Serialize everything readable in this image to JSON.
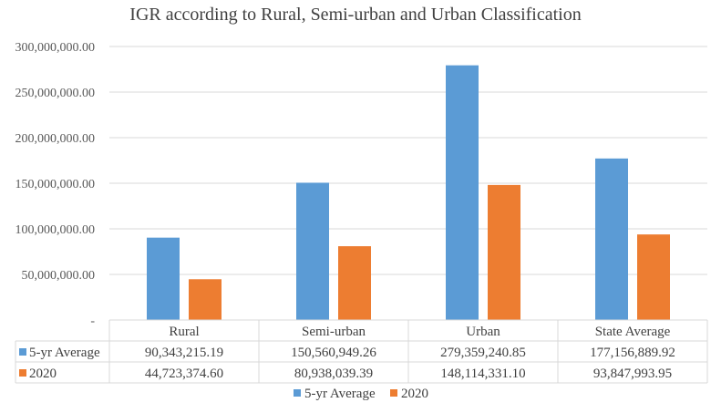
{
  "chart_data": {
    "type": "bar",
    "title": "IGR according to Rural, Semi-urban and Urban Classification",
    "categories": [
      "Rural",
      "Semi-urban",
      "Urban",
      "State Average"
    ],
    "series": [
      {
        "name": "5-yr Average",
        "values": [
          90343215.19,
          150560949.26,
          279359240.85,
          177156889.92
        ],
        "labels": [
          "90,343,215.19",
          "150,560,949.26",
          "279,359,240.85",
          "177,156,889.92"
        ],
        "color": "#5b9bd5"
      },
      {
        "name": "2020",
        "values": [
          44723374.6,
          80938039.39,
          148114331.1,
          93847993.95
        ],
        "labels": [
          "44,723,374.60",
          "80,938,039.39",
          "148,114,331.10",
          "93,847,993.95"
        ],
        "color": "#ed7d31"
      }
    ],
    "ylim": [
      0,
      300000000
    ],
    "yticks": [
      {
        "value": 0,
        "label": "-"
      },
      {
        "value": 50000000,
        "label": "50,000,000.00"
      },
      {
        "value": 100000000,
        "label": "100,000,000.00"
      },
      {
        "value": 150000000,
        "label": "150,000,000.00"
      },
      {
        "value": 200000000,
        "label": "200,000,000.00"
      },
      {
        "value": 250000000,
        "label": "250,000,000.00"
      },
      {
        "value": 300000000,
        "label": "300,000,000.00"
      }
    ],
    "grid": true,
    "legend": "bottom",
    "data_table": true
  }
}
